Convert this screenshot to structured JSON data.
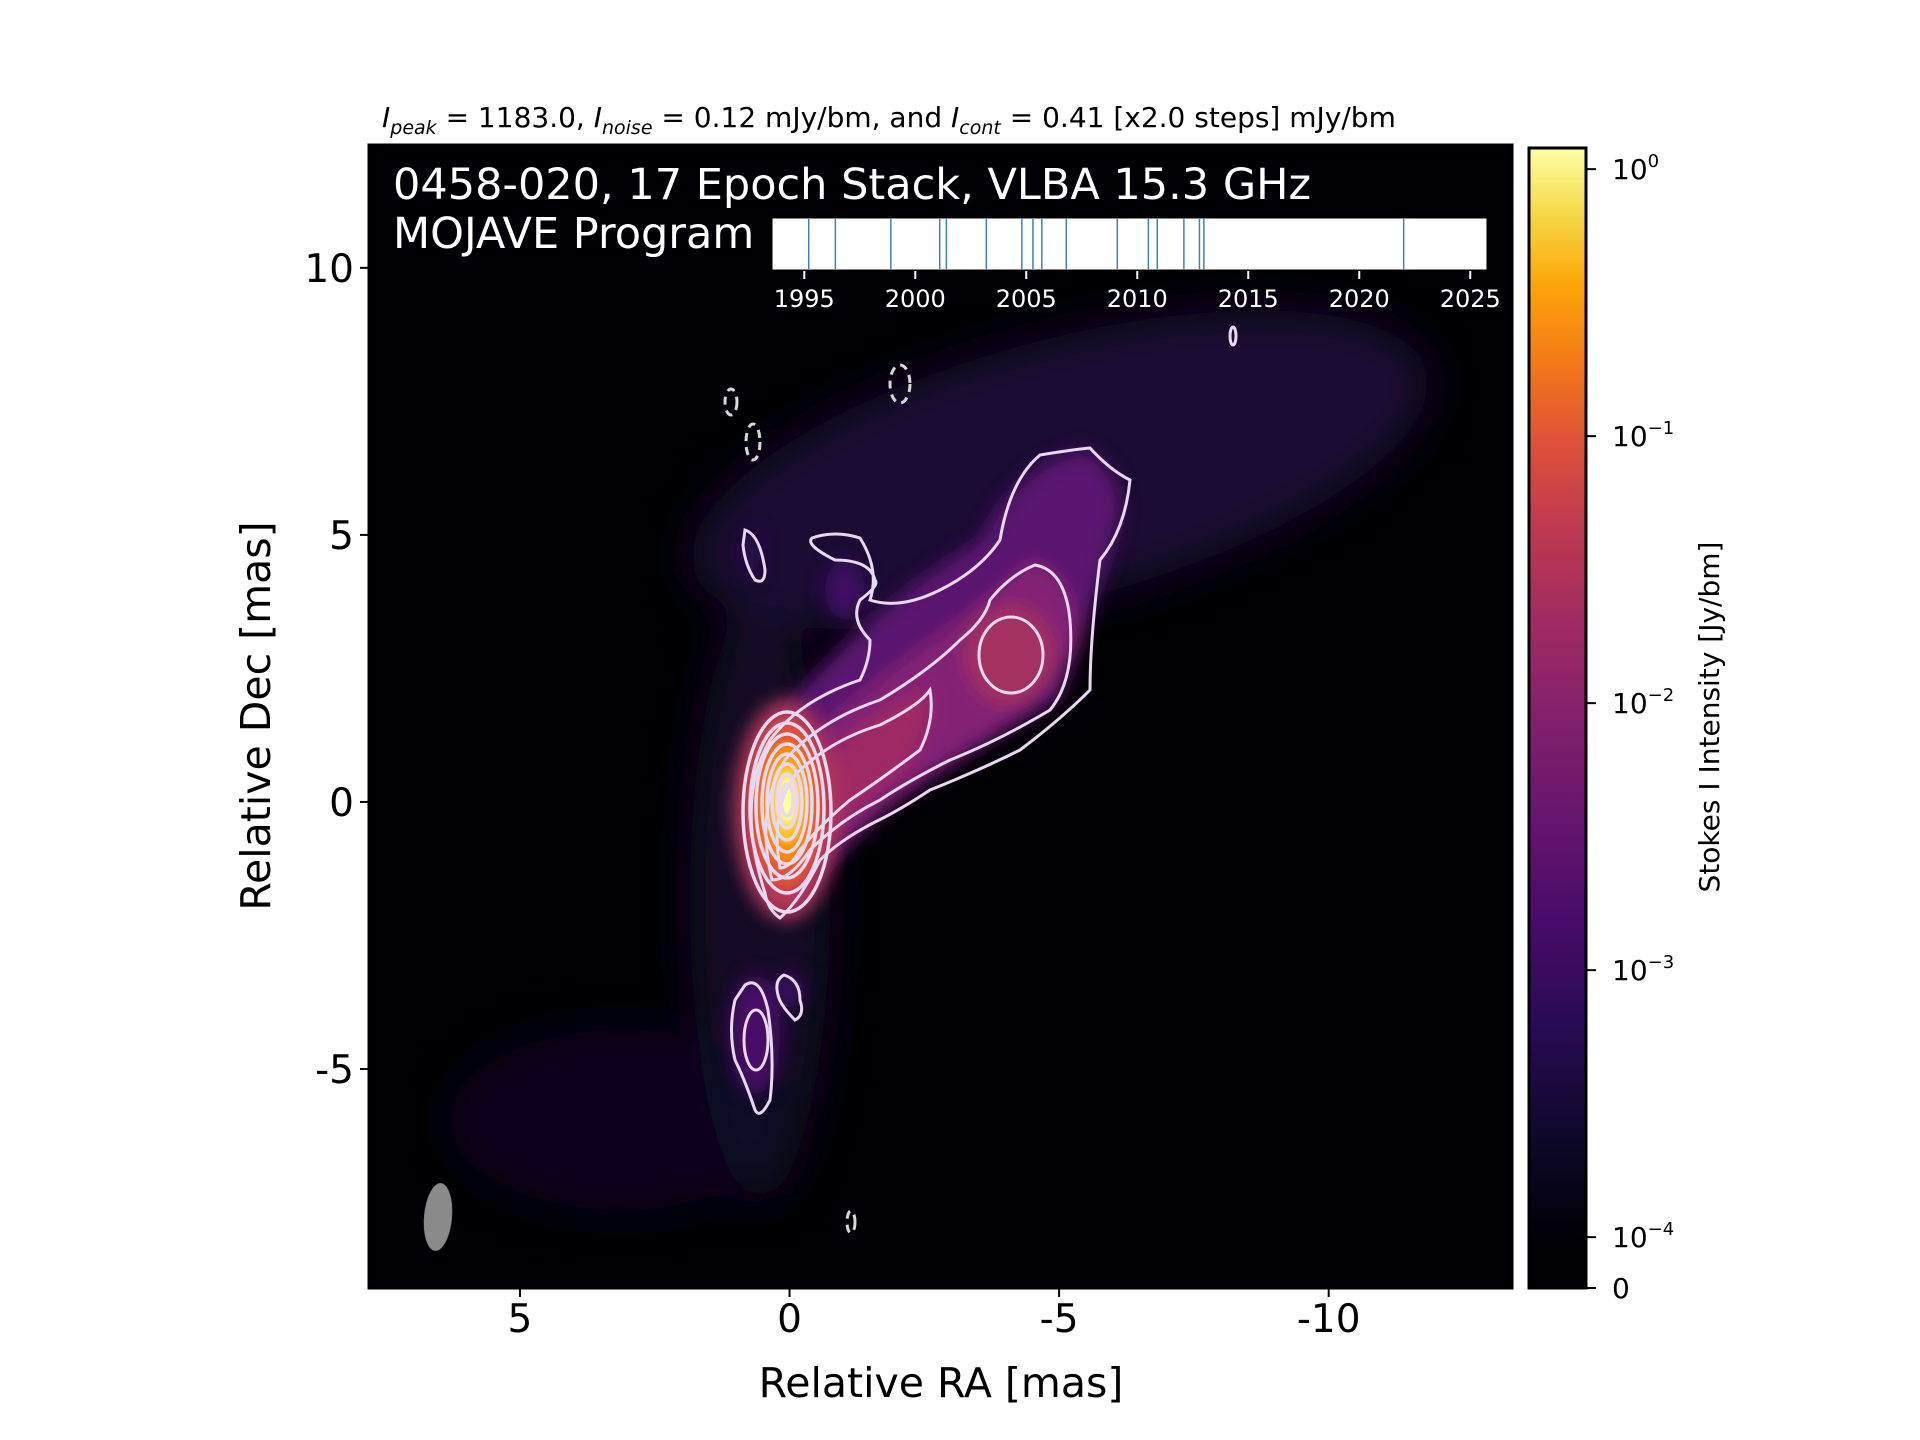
{
  "title": {
    "peak_symbol": "I",
    "peak_sub": "peak",
    "peak_text": " = 1183.0, ",
    "noise_symbol": "I",
    "noise_sub": "noise",
    "noise_text": " = 0.12 mJy/bm, and ",
    "cont_symbol": "I",
    "cont_sub": "cont",
    "cont_text": " = 0.41 [x2.0 steps] mJy/bm"
  },
  "inset": {
    "line1": "0458-020, 17 Epoch Stack, VLBA 15.3 GHz",
    "line2": "MOJAVE Program"
  },
  "colorbar": {
    "label": "Stokes I Intensity [Jy/bm]",
    "colormap": "inferno",
    "scale": "log",
    "ticks": [
      {
        "base": "10",
        "exp": "0",
        "value": 1.0
      },
      {
        "base": "10",
        "exp": "−1",
        "value": 0.1
      },
      {
        "base": "10",
        "exp": "−2",
        "value": 0.01
      },
      {
        "base": "10",
        "exp": "−3",
        "value": 0.001
      },
      {
        "base": "10",
        "exp": "−4",
        "value": 0.0001
      },
      {
        "base": "0",
        "exp": "",
        "value": 0
      }
    ]
  },
  "chart_data": {
    "type": "heatmap",
    "source": "0458-020",
    "xlabel": "Relative RA [mas]",
    "ylabel": "Relative Dec [mas]",
    "xlim": [
      7.8,
      -13.4
    ],
    "ylim": [
      -9.1,
      12.3
    ],
    "xticks": [
      {
        "value": 5,
        "label": "5"
      },
      {
        "value": 0,
        "label": "0"
      },
      {
        "value": -5,
        "label": "-5"
      },
      {
        "value": -10,
        "label": "-10"
      }
    ],
    "yticks": [
      {
        "value": 10,
        "label": "10"
      },
      {
        "value": 5,
        "label": "5"
      },
      {
        "value": 0,
        "label": "0"
      },
      {
        "value": -5,
        "label": "-5"
      }
    ],
    "peak_mjy_per_beam": 1183.0,
    "noise_mjy_per_beam": 0.12,
    "lowest_contour_mjy_per_beam": 0.41,
    "contour_step_factor": 2.0,
    "core_position": [
      0,
      0
    ],
    "beam": {
      "x": 6.5,
      "y": -7.5,
      "major_mas": 1.3,
      "minor_mas": 0.5,
      "pa_deg": -5,
      "color": "#8a8a8a"
    },
    "epoch_timeline": {
      "xlim": [
        1993.5,
        2025.8
      ],
      "tick_years": [
        1995,
        2000,
        2005,
        2010,
        2015,
        2020,
        2025
      ],
      "epochs": [
        1995.2,
        1996.4,
        1998.9,
        2001.1,
        2001.4,
        2003.2,
        2004.8,
        2005.3,
        2005.7,
        2006.8,
        2009.1,
        2010.5,
        2010.9,
        2012.1,
        2012.8,
        2013.0,
        2022.0
      ],
      "epoch_line_color": "#3f7fbf"
    }
  }
}
